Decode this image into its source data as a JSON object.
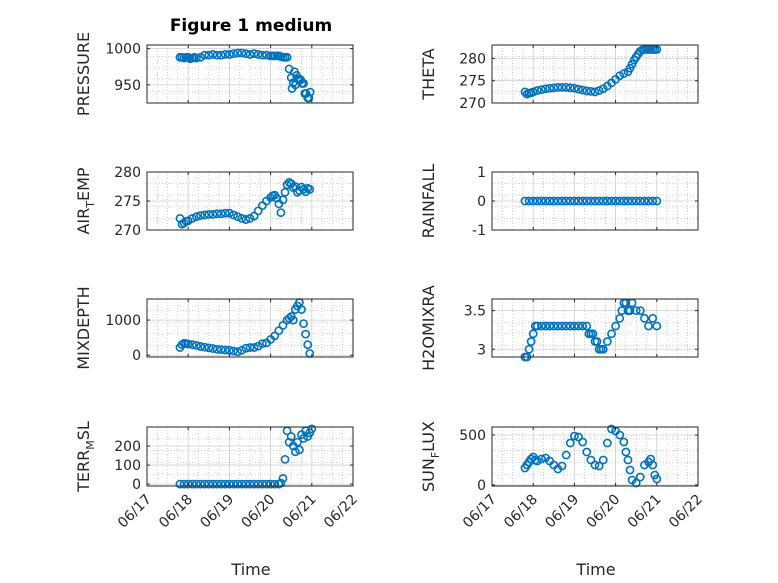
{
  "figure_title": "Figure 1 medium",
  "colors": {
    "marker": "#0072BD",
    "axis": "#262626",
    "grid": "#b0b0b0"
  },
  "chart_data": [
    {
      "type": "scatter",
      "ylabel": "PRESSURE",
      "xlabel": "",
      "xlim": [
        0,
        5
      ],
      "ylim": [
        925,
        1005
      ],
      "yticks": [
        950,
        1000
      ],
      "grid": true,
      "xtick_labels": [],
      "x": [
        0.8,
        0.85,
        0.9,
        0.95,
        1.0,
        1.05,
        1.1,
        1.15,
        1.2,
        1.3,
        1.4,
        1.5,
        1.6,
        1.7,
        1.8,
        1.9,
        2.0,
        2.1,
        2.2,
        2.3,
        2.4,
        2.5,
        2.6,
        2.7,
        2.8,
        2.9,
        3.0,
        3.05,
        3.1,
        3.15,
        3.2,
        3.25,
        3.3,
        3.35,
        3.4,
        3.45,
        3.5,
        3.52,
        3.55,
        3.58,
        3.6,
        3.63,
        3.66,
        3.7,
        3.73,
        3.76,
        3.8,
        3.83,
        3.86,
        3.9,
        3.93,
        3.96
      ],
      "y": [
        988,
        988,
        987,
        988,
        988,
        986,
        987,
        988,
        987,
        988,
        991,
        991,
        992,
        991,
        991,
        992,
        992,
        993,
        994,
        994,
        993,
        992,
        993,
        992,
        991,
        991,
        990,
        990,
        990,
        990,
        990,
        989,
        988,
        988,
        988,
        972,
        960,
        945,
        953,
        968,
        950,
        963,
        958,
        958,
        957,
        952,
        952,
        938,
        938,
        932,
        932,
        940
      ]
    },
    {
      "type": "scatter",
      "ylabel": "THETA",
      "xlabel": "",
      "xlim": [
        0,
        5
      ],
      "ylim": [
        270,
        283
      ],
      "yticks": [
        270,
        275,
        280
      ],
      "grid": true,
      "xtick_labels": [],
      "x": [
        0.8,
        0.85,
        0.9,
        0.95,
        1.0,
        1.1,
        1.2,
        1.3,
        1.4,
        1.5,
        1.6,
        1.7,
        1.8,
        1.9,
        2.0,
        2.1,
        2.2,
        2.3,
        2.4,
        2.5,
        2.6,
        2.7,
        2.8,
        2.9,
        3.0,
        3.1,
        3.2,
        3.3,
        3.35,
        3.4,
        3.45,
        3.5,
        3.55,
        3.6,
        3.65,
        3.7,
        3.75,
        3.8,
        3.85,
        3.9,
        3.95,
        4.0
      ],
      "y": [
        272.5,
        272.0,
        272.2,
        272.3,
        272.5,
        272.8,
        273.0,
        273.2,
        273.3,
        273.4,
        273.5,
        273.5,
        273.5,
        273.4,
        273.3,
        273.1,
        272.9,
        272.7,
        272.6,
        272.5,
        272.8,
        273.2,
        273.8,
        274.5,
        275.3,
        276.1,
        276.6,
        277.0,
        277.8,
        278.7,
        279.6,
        280.3,
        281.0,
        281.6,
        281.9,
        282.0,
        282.0,
        282.0,
        282.0,
        282.0,
        282.0,
        282.0
      ]
    },
    {
      "type": "scatter",
      "ylabel": "AIR",
      "ylabel_sub": "T",
      "ylabel_suffix": "EMP",
      "xlabel": "",
      "xlim": [
        0,
        5
      ],
      "ylim": [
        270,
        280
      ],
      "yticks": [
        270,
        275,
        280
      ],
      "grid": true,
      "xtick_labels": [],
      "x": [
        0.8,
        0.85,
        0.9,
        0.95,
        1.0,
        1.1,
        1.2,
        1.3,
        1.4,
        1.5,
        1.6,
        1.7,
        1.8,
        1.9,
        2.0,
        2.1,
        2.2,
        2.3,
        2.4,
        2.5,
        2.6,
        2.7,
        2.8,
        2.9,
        3.0,
        3.05,
        3.1,
        3.15,
        3.2,
        3.25,
        3.3,
        3.35,
        3.4,
        3.45,
        3.5,
        3.55,
        3.6,
        3.65,
        3.7,
        3.75,
        3.8,
        3.85,
        3.9,
        3.95
      ],
      "y": [
        272.0,
        271.0,
        271.2,
        271.5,
        271.6,
        272.0,
        272.3,
        272.5,
        272.6,
        272.7,
        272.7,
        272.8,
        272.8,
        272.9,
        272.9,
        272.6,
        272.3,
        272.0,
        271.8,
        272.0,
        272.4,
        273.3,
        274.2,
        275.0,
        275.6,
        275.9,
        276.0,
        275.5,
        274.5,
        273.0,
        275.2,
        276.5,
        277.8,
        278.2,
        278.0,
        277.3,
        277.5,
        276.5,
        276.8,
        277.4,
        277.0,
        276.6,
        277.2,
        277.0
      ]
    },
    {
      "type": "scatter",
      "ylabel": "RAINFALL",
      "xlabel": "",
      "xlim": [
        0,
        5
      ],
      "ylim": [
        -1,
        1
      ],
      "yticks": [
        -1,
        0,
        1
      ],
      "grid": true,
      "xtick_labels": [],
      "x": [
        0.8,
        0.9,
        1.0,
        1.1,
        1.2,
        1.3,
        1.4,
        1.5,
        1.6,
        1.7,
        1.8,
        1.9,
        2.0,
        2.1,
        2.2,
        2.3,
        2.4,
        2.5,
        2.6,
        2.7,
        2.8,
        2.9,
        3.0,
        3.1,
        3.2,
        3.3,
        3.4,
        3.5,
        3.6,
        3.7,
        3.8,
        3.9,
        4.0
      ],
      "y": [
        0,
        0,
        0,
        0,
        0,
        0,
        0,
        0,
        0,
        0,
        0,
        0,
        0,
        0,
        0,
        0,
        0,
        0,
        0,
        0,
        0,
        0,
        0,
        0,
        0,
        0,
        0,
        0,
        0,
        0,
        0,
        0,
        0
      ]
    },
    {
      "type": "scatter",
      "ylabel": "MIXDEPTH",
      "xlabel": "",
      "xlim": [
        0,
        5
      ],
      "ylim": [
        -50,
        1600
      ],
      "yticks": [
        0,
        1000
      ],
      "grid": true,
      "xtick_labels": [],
      "x": [
        0.8,
        0.85,
        0.9,
        0.95,
        1.0,
        1.1,
        1.2,
        1.3,
        1.4,
        1.5,
        1.6,
        1.7,
        1.8,
        1.9,
        2.0,
        2.1,
        2.2,
        2.3,
        2.4,
        2.5,
        2.6,
        2.7,
        2.8,
        2.9,
        3.0,
        3.1,
        3.2,
        3.3,
        3.4,
        3.45,
        3.5,
        3.55,
        3.6,
        3.65,
        3.7,
        3.75,
        3.8,
        3.85,
        3.9,
        3.95
      ],
      "y": [
        220,
        300,
        340,
        330,
        320,
        300,
        280,
        250,
        230,
        210,
        190,
        170,
        160,
        150,
        140,
        120,
        100,
        140,
        200,
        220,
        220,
        260,
        330,
        350,
        450,
        550,
        700,
        850,
        1000,
        1050,
        1100,
        1000,
        1300,
        1400,
        1500,
        1300,
        900,
        600,
        300,
        50
      ]
    },
    {
      "type": "scatter",
      "ylabel": "H2OMIXRA",
      "xlabel": "",
      "xlim": [
        0,
        5
      ],
      "ylim": [
        2.9,
        3.65
      ],
      "yticks": [
        3,
        3.5
      ],
      "grid": true,
      "xtick_labels": [],
      "x": [
        0.8,
        0.85,
        0.9,
        0.95,
        1.0,
        1.05,
        1.1,
        1.2,
        1.3,
        1.4,
        1.5,
        1.6,
        1.7,
        1.8,
        1.9,
        2.0,
        2.1,
        2.2,
        2.3,
        2.35,
        2.4,
        2.45,
        2.5,
        2.55,
        2.6,
        2.65,
        2.7,
        2.8,
        2.9,
        3.0,
        3.1,
        3.15,
        3.2,
        3.25,
        3.3,
        3.35,
        3.4,
        3.5,
        3.6,
        3.7,
        3.8,
        3.9,
        4.0
      ],
      "y": [
        2.9,
        2.9,
        3.0,
        3.1,
        3.2,
        3.3,
        3.3,
        3.3,
        3.3,
        3.3,
        3.3,
        3.3,
        3.3,
        3.3,
        3.3,
        3.3,
        3.3,
        3.3,
        3.3,
        3.2,
        3.2,
        3.2,
        3.1,
        3.1,
        3.0,
        3.0,
        3.0,
        3.1,
        3.2,
        3.3,
        3.4,
        3.5,
        3.6,
        3.6,
        3.5,
        3.5,
        3.6,
        3.5,
        3.5,
        3.4,
        3.3,
        3.4,
        3.3
      ]
    },
    {
      "type": "scatter",
      "ylabel": "TERR",
      "ylabel_sub": "M",
      "ylabel_suffix": "SL",
      "xlabel": "Time",
      "xlim": [
        0,
        5
      ],
      "ylim": [
        -10,
        300
      ],
      "yticks": [
        0,
        100,
        200
      ],
      "grid": true,
      "xtick_labels": [
        "06/17",
        "06/18",
        "06/19",
        "06/20",
        "06/21",
        "06/22"
      ],
      "x": [
        0.8,
        0.9,
        1.0,
        1.1,
        1.2,
        1.3,
        1.4,
        1.5,
        1.6,
        1.7,
        1.8,
        1.9,
        2.0,
        2.1,
        2.2,
        2.3,
        2.4,
        2.5,
        2.6,
        2.7,
        2.8,
        2.9,
        3.0,
        3.1,
        3.2,
        3.25,
        3.3,
        3.35,
        3.4,
        3.45,
        3.5,
        3.55,
        3.6,
        3.65,
        3.7,
        3.75,
        3.8,
        3.85,
        3.9,
        3.95,
        4.0
      ],
      "y": [
        0,
        0,
        0,
        0,
        0,
        0,
        0,
        0,
        0,
        0,
        0,
        0,
        0,
        0,
        0,
        0,
        0,
        0,
        0,
        0,
        0,
        0,
        0,
        0,
        0,
        5,
        30,
        130,
        280,
        220,
        250,
        200,
        170,
        220,
        180,
        260,
        240,
        280,
        250,
        270,
        290
      ]
    },
    {
      "type": "scatter",
      "ylabel": "SUN",
      "ylabel_sub": "F",
      "ylabel_suffix": "LUX",
      "xlabel": "Time",
      "xlim": [
        0,
        5
      ],
      "ylim": [
        -10,
        580
      ],
      "yticks": [
        0,
        500
      ],
      "grid": true,
      "xtick_labels": [
        "06/17",
        "06/18",
        "06/19",
        "06/20",
        "06/21",
        "06/22"
      ],
      "x": [
        0.8,
        0.85,
        0.9,
        0.95,
        1.0,
        1.05,
        1.1,
        1.2,
        1.3,
        1.4,
        1.5,
        1.6,
        1.7,
        1.8,
        1.9,
        2.0,
        2.1,
        2.2,
        2.3,
        2.4,
        2.5,
        2.6,
        2.7,
        2.8,
        2.9,
        3.0,
        3.1,
        3.2,
        3.25,
        3.3,
        3.35,
        3.4,
        3.5,
        3.6,
        3.7,
        3.8,
        3.85,
        3.9,
        3.95,
        4.0
      ],
      "y": [
        170,
        200,
        230,
        260,
        280,
        250,
        240,
        260,
        270,
        240,
        200,
        160,
        190,
        300,
        420,
        490,
        480,
        430,
        330,
        250,
        200,
        190,
        250,
        420,
        560,
        540,
        500,
        430,
        330,
        250,
        150,
        50,
        20,
        80,
        200,
        230,
        260,
        200,
        100,
        60
      ]
    }
  ]
}
